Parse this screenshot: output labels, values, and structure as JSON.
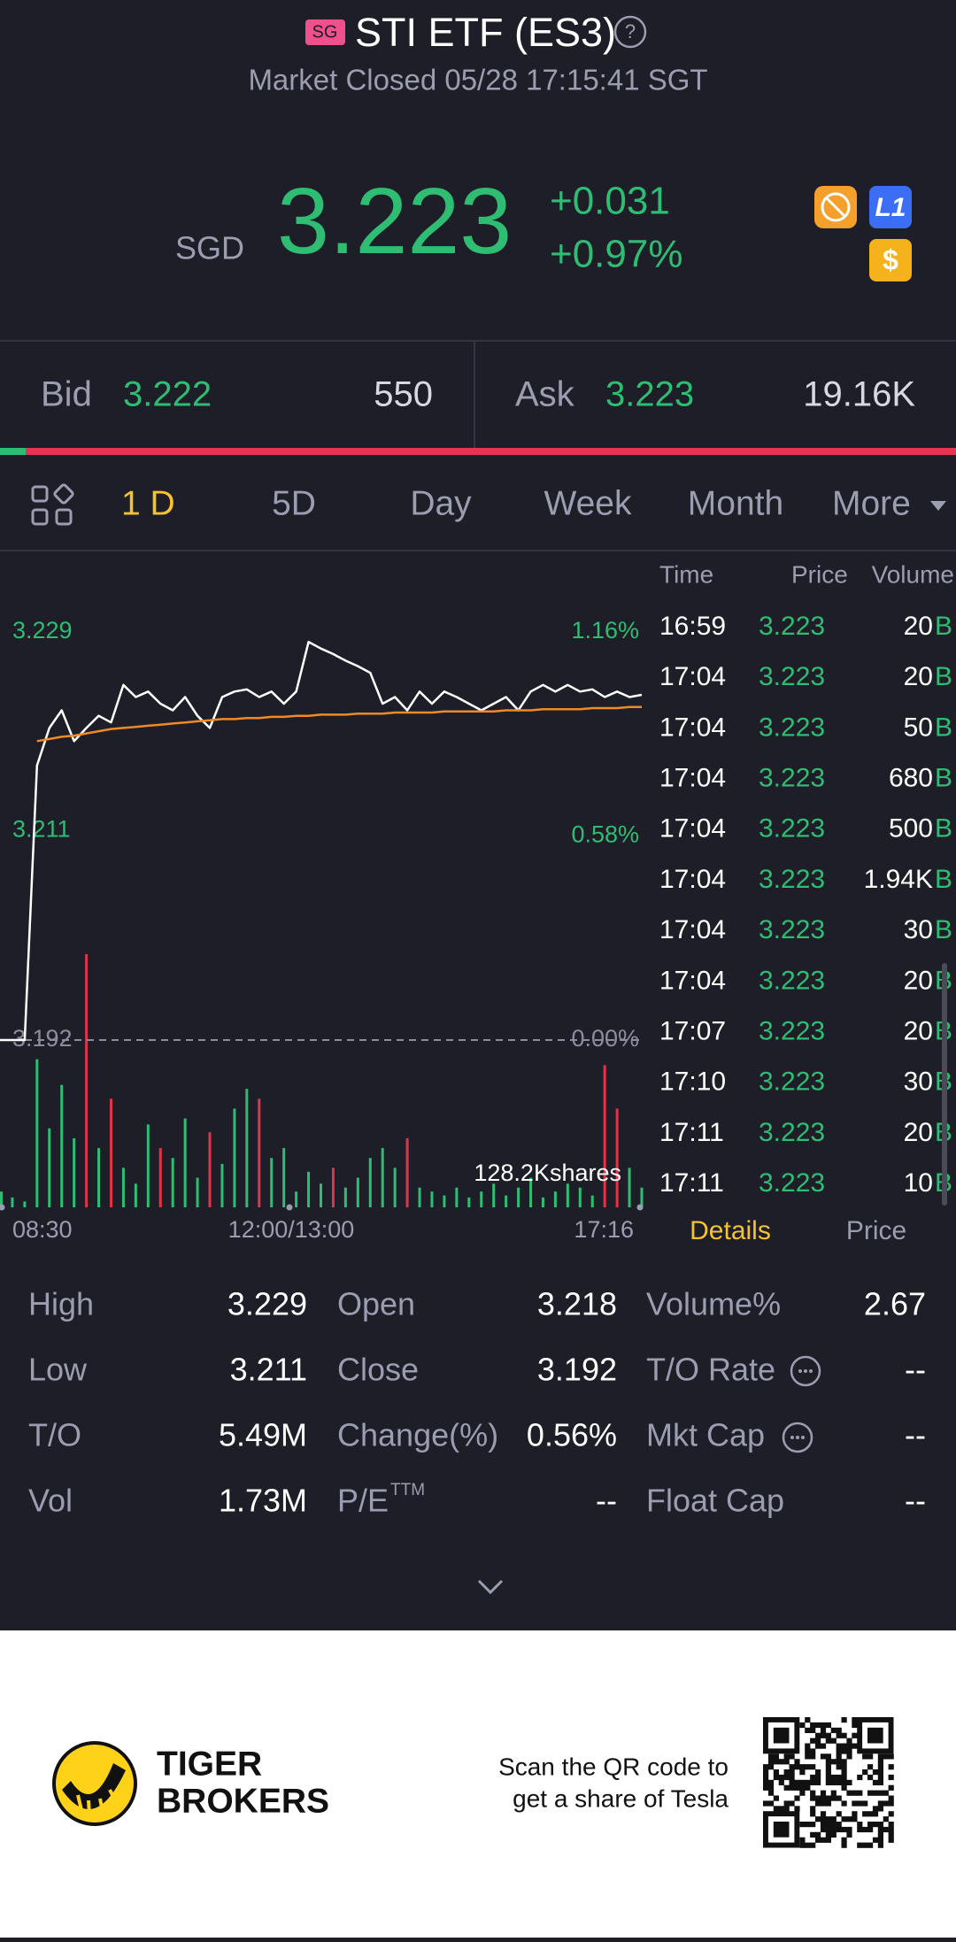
{
  "header": {
    "badge": "SG",
    "title": "STI ETF (ES3)",
    "status": "Market Closed 05/28 17:15:41 SGT"
  },
  "quote": {
    "currency": "SGD",
    "price": "3.223",
    "change": "+0.031",
    "change_percent": "+0.97%",
    "badges": [
      "L1",
      "$"
    ]
  },
  "order_book": {
    "bid_label": "Bid",
    "bid_price": "3.222",
    "bid_size": "550",
    "ask_label": "Ask",
    "ask_price": "3.223",
    "ask_size": "19.16K"
  },
  "tabs": [
    "1 D",
    "5D",
    "Day",
    "Week",
    "Month",
    "More"
  ],
  "chart_data": {
    "type": "line",
    "ylim": [
      3.192,
      3.229
    ],
    "yticks": [
      3.229,
      3.211,
      3.192
    ],
    "y2lim": [
      0,
      1.16
    ],
    "y2ticks": [
      {
        "value": 1.16,
        "label": "1.16%"
      },
      {
        "value": 0.58,
        "label": "0.58%"
      },
      {
        "value": 0,
        "label": "0.00%"
      }
    ],
    "xticks": [
      "08:30",
      "12:00/13:00",
      "17:16"
    ],
    "series": [
      {
        "color": "#ffffff",
        "values": [
          3.192,
          3.192,
          3.192,
          3.2169,
          3.2203,
          3.2219,
          3.2191,
          3.2203,
          3.2214,
          3.2208,
          3.2242,
          3.2231,
          3.2236,
          3.2225,
          3.2219,
          3.2231,
          3.2214,
          3.2203,
          3.2231,
          3.2236,
          3.2238,
          3.2231,
          3.2236,
          3.2225,
          3.2236,
          3.2281,
          3.2275,
          3.227,
          3.2264,
          3.2259,
          3.2253,
          3.2225,
          3.2231,
          3.2219,
          3.2236,
          3.2225,
          3.2236,
          3.2231,
          3.2225,
          3.2219,
          3.2225,
          3.2231,
          3.2219,
          3.2236,
          3.2242,
          3.2236,
          3.2242,
          3.2236,
          3.2238,
          3.2231,
          3.2236,
          3.2231,
          3.2233
        ]
      },
      {
        "color": "#f08a24",
        "values": [
          null,
          null,
          null,
          3.2191,
          3.2193,
          3.2195,
          3.2196,
          3.2198,
          3.22,
          3.2202,
          3.2203,
          3.2204,
          3.2205,
          3.2206,
          3.2207,
          3.2208,
          3.2209,
          3.221,
          3.2211,
          3.2211,
          3.2212,
          3.2212,
          3.2213,
          3.2213,
          3.2214,
          3.2214,
          3.2215,
          3.2215,
          3.2215,
          3.2216,
          3.2216,
          3.2216,
          3.2217,
          3.2217,
          3.2217,
          3.2217,
          3.2218,
          3.2218,
          3.2218,
          3.2218,
          3.2218,
          3.2219,
          3.2219,
          3.2219,
          3.222,
          3.222,
          3.222,
          3.222,
          3.2221,
          3.2221,
          3.2221,
          3.2222,
          3.2222
        ]
      }
    ],
    "volume": {
      "label": "128.2Kshares",
      "ylim": [
        0,
        128.2
      ],
      "values": [
        8,
        5,
        3,
        75,
        40,
        62,
        35,
        128.2,
        30,
        55,
        20,
        12,
        42,
        30,
        25,
        45,
        15,
        38,
        22,
        50,
        60,
        55,
        25,
        30,
        8,
        18,
        12,
        20,
        10,
        15,
        25,
        30,
        20,
        35,
        10,
        8,
        6,
        10,
        5,
        8,
        12,
        6,
        10,
        15,
        5,
        8,
        12,
        10,
        6,
        72,
        50,
        20,
        10
      ],
      "colors": [
        "#2ebd73",
        "#2ebd73",
        "#2ebd73",
        "#2ebd73",
        "#2ebd73",
        "#2ebd73",
        "#2ebd73",
        "#e0344b",
        "#2ebd73",
        "#e0344b",
        "#2ebd73",
        "#2ebd73",
        "#2ebd73",
        "#e0344b",
        "#2ebd73",
        "#2ebd73",
        "#2ebd73",
        "#e0344b",
        "#2ebd73",
        "#2ebd73",
        "#2ebd73",
        "#e0344b",
        "#2ebd73",
        "#2ebd73",
        "#2ebd73",
        "#2ebd73",
        "#2ebd73",
        "#e0344b",
        "#2ebd73",
        "#2ebd73",
        "#2ebd73",
        "#2ebd73",
        "#2ebd73",
        "#e0344b",
        "#2ebd73",
        "#2ebd73",
        "#2ebd73",
        "#2ebd73",
        "#2ebd73",
        "#2ebd73",
        "#2ebd73",
        "#2ebd73",
        "#2ebd73",
        "#2ebd73",
        "#2ebd73",
        "#2ebd73",
        "#2ebd73",
        "#2ebd73",
        "#2ebd73",
        "#e0344b",
        "#e0344b",
        "#2ebd73",
        "#2ebd73"
      ]
    }
  },
  "trades": {
    "columns": [
      "Time",
      "Price",
      "Volume"
    ],
    "side": "B",
    "rows": [
      [
        "16:59",
        "3.223",
        "20"
      ],
      [
        "17:04",
        "3.223",
        "20"
      ],
      [
        "17:04",
        "3.223",
        "50"
      ],
      [
        "17:04",
        "3.223",
        "680"
      ],
      [
        "17:04",
        "3.223",
        "500"
      ],
      [
        "17:04",
        "3.223",
        "1.94K"
      ],
      [
        "17:04",
        "3.223",
        "30"
      ],
      [
        "17:04",
        "3.223",
        "20"
      ],
      [
        "17:07",
        "3.223",
        "20"
      ],
      [
        "17:10",
        "3.223",
        "30"
      ],
      [
        "17:11",
        "3.223",
        "20"
      ],
      [
        "17:11",
        "3.223",
        "10"
      ]
    ]
  },
  "detail_tabs": [
    "Details",
    "Price"
  ],
  "stats": [
    {
      "label": "High",
      "value": "3.229"
    },
    {
      "label": "Low",
      "value": "3.211"
    },
    {
      "label": "T/O",
      "value": "5.49M"
    },
    {
      "label": "Vol",
      "value": "1.73M"
    },
    {
      "label": "Open",
      "value": "3.218"
    },
    {
      "label": "Close",
      "value": "3.192"
    },
    {
      "label": "Change(%)",
      "value": "0.56%"
    },
    {
      "label": "P/E",
      "sup": "TTM",
      "value": "--"
    },
    {
      "label": "Volume%",
      "value": "2.67"
    },
    {
      "label": "T/O Rate",
      "value": "--"
    },
    {
      "label": "Mkt Cap",
      "value": "--"
    },
    {
      "label": "Float Cap",
      "value": "--"
    }
  ],
  "footer": {
    "brand": [
      "TIGER",
      "BROKERS"
    ],
    "promo": [
      "Scan the QR code to",
      "get a share of Tesla"
    ]
  }
}
